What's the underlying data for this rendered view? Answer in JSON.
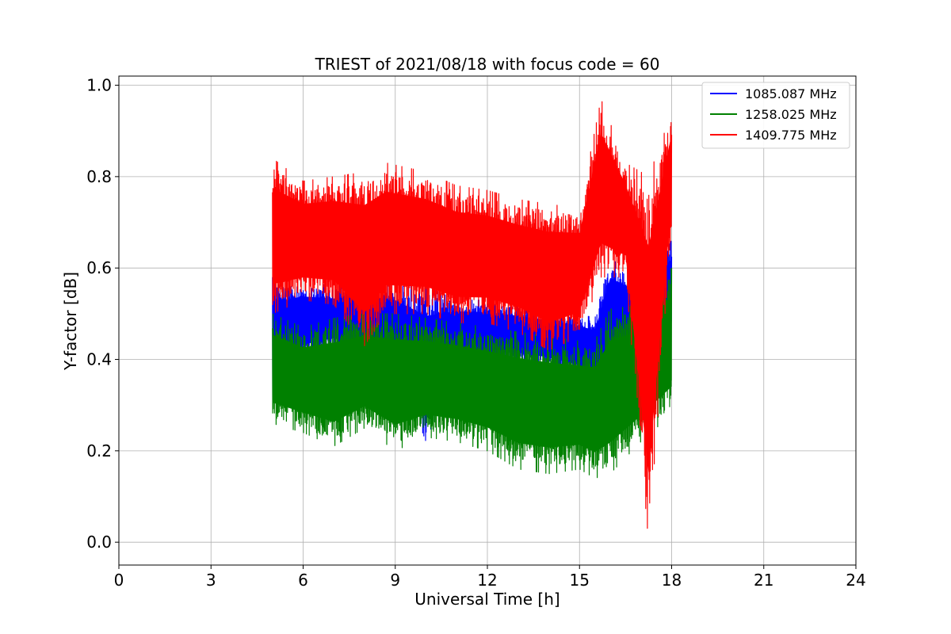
{
  "chart_data": {
    "type": "line",
    "title": "TRIEST of 2021/08/18 with focus code = 60",
    "xlabel": "Universal Time [h]",
    "ylabel": "Y-factor [dB]",
    "xlim": [
      0,
      24
    ],
    "ylim": [
      -0.05,
      1.02
    ],
    "xticks": [
      0,
      3,
      6,
      9,
      12,
      15,
      18,
      21,
      24
    ],
    "xtick_labels": [
      "0",
      "3",
      "6",
      "9",
      "12",
      "15",
      "18",
      "21",
      "24"
    ],
    "yticks": [
      0.0,
      0.2,
      0.4,
      0.6,
      0.8,
      1.0
    ],
    "ytick_labels": [
      "0.0",
      "0.2",
      "0.4",
      "0.6",
      "0.8",
      "1.0"
    ],
    "grid": true,
    "legend_position": "top-right",
    "series": [
      {
        "name": "1085.087 MHz",
        "color": "#0000ff",
        "summary": [
          {
            "x": 5.0,
            "low": 0.3,
            "high": 0.58
          },
          {
            "x": 6.0,
            "low": 0.4,
            "high": 0.57
          },
          {
            "x": 7.0,
            "low": 0.42,
            "high": 0.56
          },
          {
            "x": 8.0,
            "low": 0.41,
            "high": 0.57
          },
          {
            "x": 9.0,
            "low": 0.4,
            "high": 0.56
          },
          {
            "x": 10.0,
            "low": 0.22,
            "high": 0.56
          },
          {
            "x": 11.0,
            "low": 0.4,
            "high": 0.53
          },
          {
            "x": 12.0,
            "low": 0.39,
            "high": 0.53
          },
          {
            "x": 13.0,
            "low": 0.39,
            "high": 0.52
          },
          {
            "x": 14.0,
            "low": 0.38,
            "high": 0.51
          },
          {
            "x": 15.0,
            "low": 0.36,
            "high": 0.5
          },
          {
            "x": 15.5,
            "low": 0.35,
            "high": 0.49
          },
          {
            "x": 16.0,
            "low": 0.4,
            "high": 0.62
          },
          {
            "x": 17.0,
            "low": 0.4,
            "high": 0.58
          },
          {
            "x": 18.0,
            "low": 0.45,
            "high": 0.66
          }
        ]
      },
      {
        "name": "1258.025 MHz",
        "color": "#008000",
        "summary": [
          {
            "x": 5.0,
            "low": 0.26,
            "high": 0.5
          },
          {
            "x": 6.0,
            "low": 0.24,
            "high": 0.47
          },
          {
            "x": 7.0,
            "low": 0.21,
            "high": 0.49
          },
          {
            "x": 8.0,
            "low": 0.25,
            "high": 0.5
          },
          {
            "x": 9.0,
            "low": 0.2,
            "high": 0.5
          },
          {
            "x": 10.0,
            "low": 0.23,
            "high": 0.49
          },
          {
            "x": 11.0,
            "low": 0.22,
            "high": 0.48
          },
          {
            "x": 12.0,
            "low": 0.2,
            "high": 0.47
          },
          {
            "x": 13.0,
            "low": 0.16,
            "high": 0.46
          },
          {
            "x": 14.0,
            "low": 0.15,
            "high": 0.45
          },
          {
            "x": 15.0,
            "low": 0.16,
            "high": 0.44
          },
          {
            "x": 15.5,
            "low": 0.14,
            "high": 0.44
          },
          {
            "x": 16.0,
            "low": 0.15,
            "high": 0.51
          },
          {
            "x": 17.0,
            "low": 0.22,
            "high": 0.52
          },
          {
            "x": 18.0,
            "low": 0.28,
            "high": 0.6
          }
        ]
      },
      {
        "name": "1409.775 MHz",
        "color": "#ff0000",
        "summary": [
          {
            "x": 5.0,
            "low": 0.5,
            "high": 0.84
          },
          {
            "x": 6.0,
            "low": 0.53,
            "high": 0.79
          },
          {
            "x": 7.0,
            "low": 0.52,
            "high": 0.8
          },
          {
            "x": 8.0,
            "low": 0.43,
            "high": 0.81
          },
          {
            "x": 8.7,
            "low": 0.5,
            "high": 0.83
          },
          {
            "x": 10.0,
            "low": 0.5,
            "high": 0.81
          },
          {
            "x": 11.0,
            "low": 0.48,
            "high": 0.78
          },
          {
            "x": 12.0,
            "low": 0.48,
            "high": 0.77
          },
          {
            "x": 13.0,
            "low": 0.46,
            "high": 0.75
          },
          {
            "x": 14.0,
            "low": 0.42,
            "high": 0.74
          },
          {
            "x": 15.0,
            "low": 0.45,
            "high": 0.73
          },
          {
            "x": 15.7,
            "low": 0.58,
            "high": 0.97
          },
          {
            "x": 16.5,
            "low": 0.58,
            "high": 0.83
          },
          {
            "x": 17.25,
            "low": 0.0,
            "high": 0.8
          },
          {
            "x": 18.0,
            "low": 0.7,
            "high": 0.94
          }
        ]
      }
    ]
  }
}
